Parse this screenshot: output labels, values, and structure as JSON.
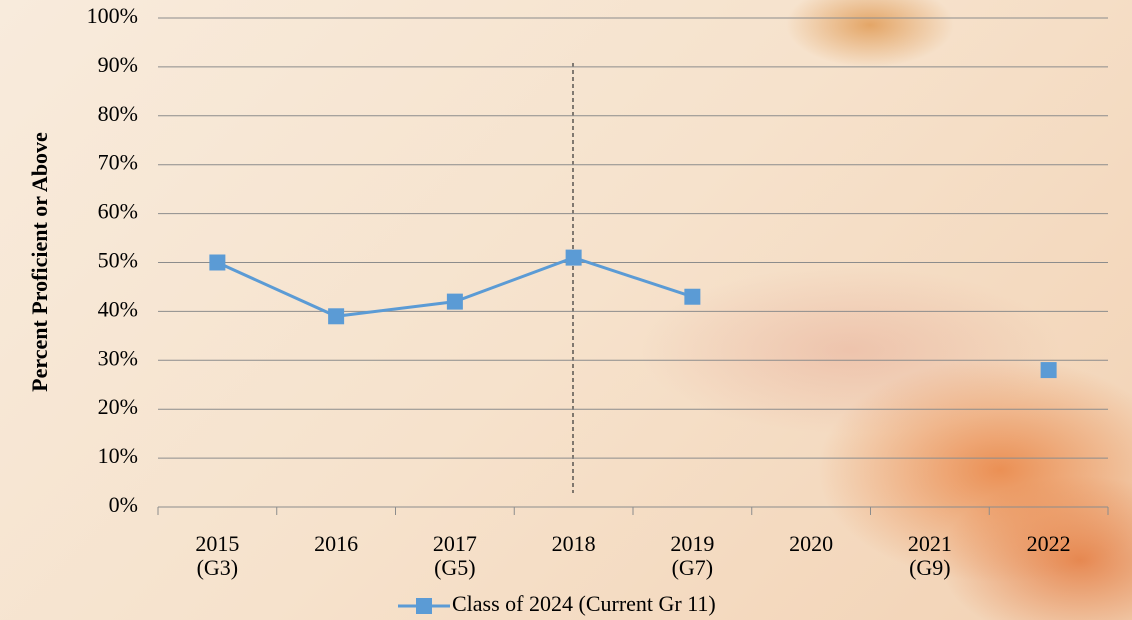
{
  "chart_data": {
    "type": "line",
    "y_label": "Percent Proficient or Above",
    "categories": [
      "2015\n(G3)",
      "2016",
      "2017\n(G5)",
      "2018",
      "2019\n(G7)",
      "2020",
      "2021\n(G9)",
      "2022"
    ],
    "series": [
      {
        "name": "Class of 2024 (Current Gr 11)",
        "color": "#5b9bd5",
        "values": [
          50,
          39,
          42,
          51,
          43,
          null,
          null,
          28
        ]
      }
    ],
    "ylim": [
      0,
      100
    ],
    "yticks": [
      {
        "value": 0,
        "label": "0%"
      },
      {
        "value": 10,
        "label": "10%"
      },
      {
        "value": 20,
        "label": "20%"
      },
      {
        "value": 30,
        "label": "30%"
      },
      {
        "value": 40,
        "label": "40%"
      },
      {
        "value": 50,
        "label": "50%"
      },
      {
        "value": 60,
        "label": "60%"
      },
      {
        "value": 70,
        "label": "70%"
      },
      {
        "value": 80,
        "label": "80%"
      },
      {
        "value": 90,
        "label": "90%"
      },
      {
        "value": 100,
        "label": "100%"
      }
    ],
    "grid": true,
    "legend": "bottom"
  }
}
